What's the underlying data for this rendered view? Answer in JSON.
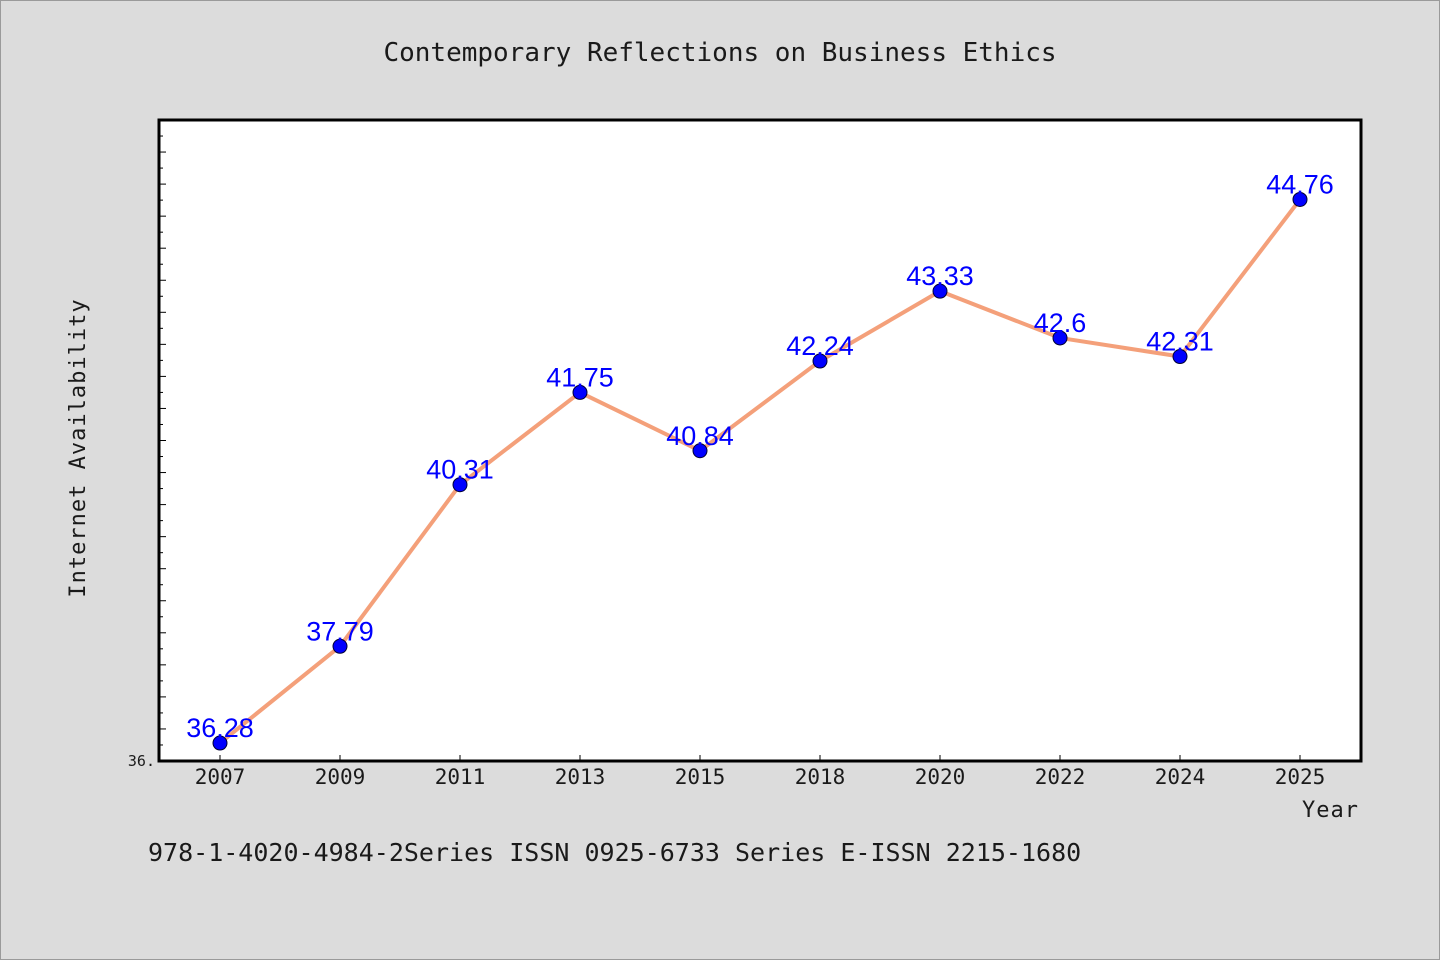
{
  "chart_data": {
    "type": "line",
    "title": "Contemporary Reflections on Business Ethics",
    "xlabel": "Year",
    "ylabel": "Internet Availability",
    "categories": [
      "2007",
      "2009",
      "2011",
      "2013",
      "2015",
      "2018",
      "2020",
      "2022",
      "2024",
      "2025"
    ],
    "series": [
      {
        "values": [
          36.28,
          37.79,
          40.31,
          41.75,
          40.84,
          42.24,
          43.33,
          42.6,
          42.31,
          44.76
        ]
      }
    ],
    "data_labels": [
      "36.28",
      "37.79",
      "40.31",
      "41.75",
      "40.84",
      "42.24",
      "43.33",
      "42.6",
      "42.31",
      "44.76"
    ],
    "ylim": [
      36.0,
      46.0
    ],
    "y_tick_label": "36.",
    "grid": false,
    "line_color": "#f4a07a",
    "marker_color": "#0000ff",
    "label_color": "#0000ff"
  },
  "footnote": "978-1-4020-4984-2Series ISSN 0925-6733 Series E-ISSN 2215-1680"
}
